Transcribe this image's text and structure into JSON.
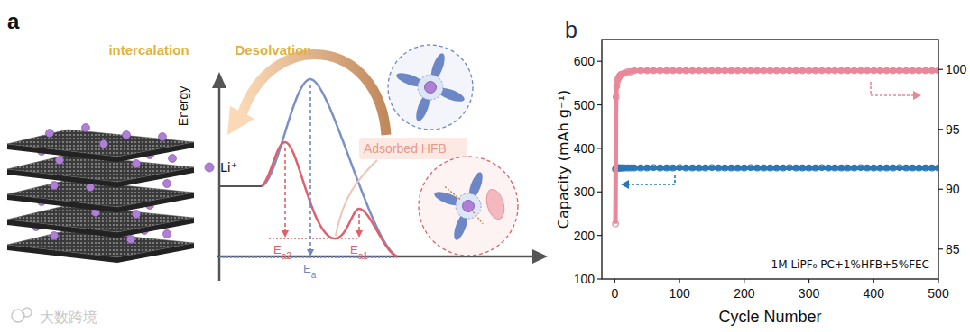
{
  "panel_labels": [
    "a",
    "b"
  ],
  "watermark": "大数跨境",
  "panel_a": {
    "intercalation": "intercalation",
    "desolvation": "Desolvation",
    "y_axis": "Energy",
    "legend_li": "Li⁺",
    "adsorbed": "Adsorbed HFB",
    "barriers": [
      {
        "main": "E",
        "sub": "a2"
      },
      {
        "main": "E",
        "sub": "a"
      },
      {
        "main": "E",
        "sub": "a1"
      }
    ]
  },
  "chart_data": {
    "type": "line",
    "x_label": "Cycle Number",
    "y_label": "Capacity (mAh g⁻¹)",
    "annotation": "1M LiPF₆ PC+1%HFB+5%FEC",
    "xlim": [
      -20,
      500
    ],
    "xticks": [
      0,
      100,
      200,
      300,
      400,
      500
    ],
    "ylim": [
      100,
      650
    ],
    "yticks": [
      100,
      200,
      300,
      400,
      500,
      600
    ],
    "y2lim": [
      82.5,
      102.5
    ],
    "y2ticks": [
      85,
      90,
      95,
      100
    ],
    "grid": false,
    "x": [
      1,
      2,
      3,
      4,
      5,
      6,
      7,
      8,
      10,
      12,
      15,
      20,
      25,
      30,
      40,
      50,
      60,
      70,
      80,
      90,
      100,
      110,
      120,
      130,
      140,
      150,
      160,
      170,
      180,
      190,
      200,
      210,
      220,
      230,
      240,
      250,
      260,
      270,
      280,
      290,
      300,
      310,
      320,
      330,
      340,
      350,
      360,
      370,
      380,
      390,
      400,
      410,
      420,
      430,
      440,
      450,
      460,
      470,
      480,
      490,
      500
    ],
    "series": [
      {
        "color": "#2b78b8",
        "marker": "circle",
        "axis": "y",
        "values": [
          352,
          354,
          355,
          355,
          355,
          355,
          355,
          355,
          355,
          355,
          355,
          355,
          355,
          355,
          355,
          355,
          356,
          355,
          355,
          355,
          356,
          355,
          355,
          355,
          355,
          356,
          355,
          355,
          355,
          355,
          355,
          356,
          355,
          355,
          355,
          355,
          355,
          356,
          355,
          355,
          355,
          355,
          356,
          355,
          355,
          355,
          355,
          355,
          356,
          355,
          355,
          355,
          355,
          355,
          356,
          355,
          355,
          355,
          355,
          355,
          355
        ]
      },
      {
        "color": "#e8889a",
        "marker": "circle",
        "axis": "y2",
        "values": [
          87.1,
          97.7,
          98.6,
          99.0,
          99.2,
          99.3,
          99.4,
          99.5,
          99.6,
          99.6,
          99.7,
          99.8,
          99.8,
          99.9,
          99.9,
          99.9,
          99.9,
          99.9,
          99.9,
          99.9,
          99.9,
          99.9,
          99.9,
          99.9,
          99.9,
          99.9,
          99.9,
          99.9,
          99.9,
          99.9,
          99.9,
          99.9,
          99.9,
          99.9,
          99.9,
          99.9,
          99.9,
          99.9,
          99.9,
          99.9,
          99.9,
          99.9,
          99.9,
          99.9,
          99.9,
          99.9,
          99.9,
          99.9,
          99.9,
          99.9,
          99.9,
          99.9,
          99.9,
          99.9,
          99.9,
          99.9,
          99.9,
          99.9,
          99.9,
          99.9,
          99.9
        ]
      }
    ]
  }
}
